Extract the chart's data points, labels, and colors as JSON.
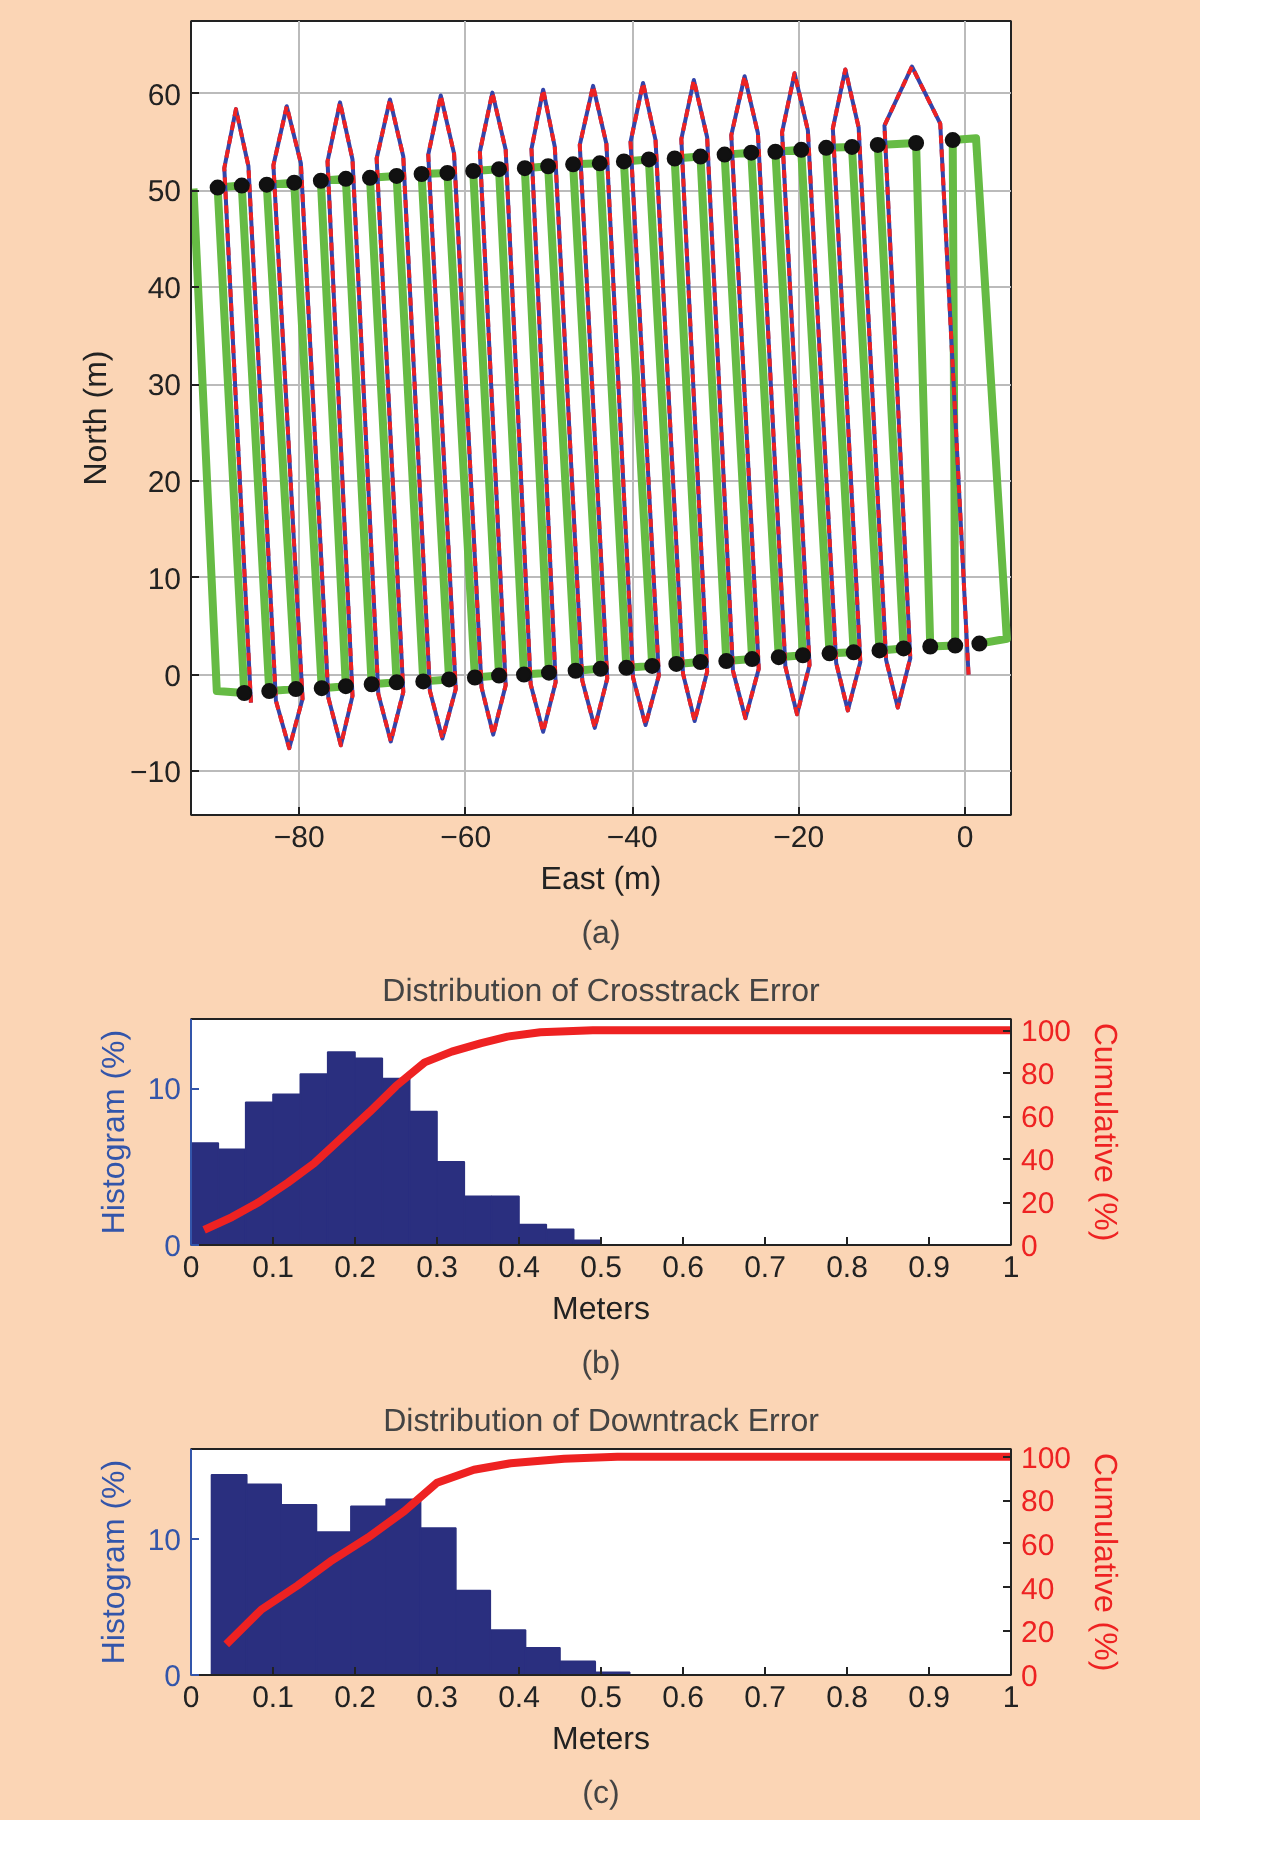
{
  "chart_data": [
    {
      "type": "line",
      "xlabel": "East (m)",
      "ylabel": "North (m)",
      "annotations": [
        "(a)"
      ],
      "xlim": [
        -93,
        5.5
      ],
      "ylim": [
        -14.5,
        67.5
      ],
      "xticks": [
        {
          "value": -80,
          "label": "−80"
        },
        {
          "value": -60,
          "label": "−60"
        },
        {
          "value": -40,
          "label": "−40"
        },
        {
          "value": -20,
          "label": "−20"
        },
        0
      ],
      "yticks": [
        {
          "value": -10,
          "label": "−10"
        },
        0,
        10,
        20,
        30,
        40,
        50,
        60
      ],
      "grid": true,
      "series": [
        {
          "type": "line",
          "color": "#66bb44",
          "line_style": "solid",
          "marker": "none",
          "x": [
            -92.7,
            -89.9,
            -86.6,
            -89.8,
            -86.9,
            -83.6,
            -80.4,
            -83.9,
            -80.6,
            -77.3,
            -74.4,
            -77.4,
            -74.4,
            -71.3,
            -68.3,
            -71.5,
            -68.3,
            -65.1,
            -62.0,
            -65.3,
            -62.2,
            -58.9,
            -56.0,
            -59.1,
            -56.0,
            -53.0,
            -50.0,
            -52.9,
            -50.1,
            -46.8,
            -43.8,
            -47.1,
            -43.9,
            -40.7,
            -37.6,
            -41.0,
            -38.0,
            -34.7,
            -31.8,
            -34.9,
            -31.8,
            -28.7,
            -25.6,
            -28.9,
            -25.7,
            -22.4,
            -19.5,
            -22.8,
            -19.7,
            -16.3,
            -13.4,
            -16.7,
            -13.6,
            -10.3,
            -7.4,
            -10.5,
            -5.9,
            -4.2,
            -1.2,
            -1.5,
            1.3,
            5.0,
            1.7
          ],
          "values": [
            50.2,
            -1.7,
            -1.9,
            50.3,
            50.5,
            -1.7,
            -1.5,
            50.6,
            50.8,
            -1.4,
            -1.2,
            51.0,
            51.2,
            -1.0,
            -0.8,
            51.3,
            51.5,
            -0.7,
            -0.5,
            51.7,
            51.8,
            -0.3,
            -0.1,
            52.0,
            52.2,
            0.0,
            0.2,
            52.3,
            52.5,
            0.4,
            0.6,
            52.7,
            52.8,
            0.7,
            0.9,
            53.0,
            53.2,
            1.1,
            1.3,
            53.3,
            53.5,
            1.4,
            1.6,
            53.7,
            53.9,
            1.8,
            2.0,
            54.0,
            54.2,
            2.2,
            2.3,
            54.4,
            54.5,
            2.5,
            2.7,
            54.7,
            54.9,
            2.9,
            3.0,
            55.2,
            55.4,
            3.7,
            3.2
          ]
        },
        {
          "type": "line",
          "color": "#3344aa",
          "line_style": "solid",
          "marker": "none",
          "x": [
            -85.8,
            -89.0,
            -87.6,
            -86.1,
            -82.8,
            -81.2,
            -79.6,
            -83.1,
            -81.5,
            -79.8,
            -76.5,
            -75.0,
            -73.6,
            -76.6,
            -75.1,
            -73.6,
            -70.5,
            -69.0,
            -67.5,
            -70.7,
            -69.1,
            -67.5,
            -64.3,
            -62.8,
            -61.2,
            -64.5,
            -63.0,
            -61.4,
            -58.1,
            -56.7,
            -55.2,
            -58.3,
            -56.8,
            -55.2,
            -52.2,
            -50.7,
            -49.2,
            -52.1,
            -50.7,
            -49.3,
            -46.0,
            -44.5,
            -43.0,
            -46.3,
            -44.7,
            -43.1,
            -39.9,
            -38.4,
            -36.8,
            -40.2,
            -38.7,
            -37.2,
            -33.9,
            -32.5,
            -31.0,
            -34.1,
            -32.6,
            -31.0,
            -27.9,
            -26.4,
            -24.8,
            -28.1,
            -26.5,
            -24.9,
            -21.6,
            -20.2,
            -18.7,
            -22.0,
            -20.5,
            -18.9,
            -15.5,
            -14.1,
            -12.6,
            -15.9,
            -14.4,
            -12.8,
            -9.5,
            -8.1,
            -6.6,
            -9.7,
            -6.4,
            -3.0,
            0.4
          ],
          "values": [
            -2.9,
            52.3,
            58.4,
            52.5,
            -2.7,
            -7.6,
            -2.5,
            52.6,
            58.7,
            52.8,
            -2.4,
            -7.3,
            -2.2,
            53.0,
            59.1,
            53.2,
            -2.0,
            -6.9,
            -1.8,
            53.3,
            59.4,
            53.5,
            -1.7,
            -6.6,
            -1.5,
            53.7,
            59.8,
            53.8,
            -1.3,
            -6.2,
            -1.1,
            54.0,
            60.1,
            54.2,
            -1.0,
            -5.9,
            -0.8,
            54.3,
            60.4,
            54.5,
            -0.6,
            -5.5,
            -0.4,
            54.7,
            60.8,
            54.8,
            -0.3,
            -5.2,
            -0.1,
            55.0,
            61.1,
            55.2,
            0.1,
            -4.8,
            0.3,
            55.3,
            61.4,
            55.5,
            0.4,
            -4.5,
            0.6,
            55.7,
            61.8,
            55.9,
            0.8,
            -4.1,
            1.0,
            56.0,
            62.1,
            56.2,
            1.2,
            -3.7,
            1.3,
            56.4,
            62.5,
            56.5,
            1.5,
            -3.4,
            1.7,
            56.7,
            62.8,
            56.9,
            0.0
          ]
        },
        {
          "type": "line",
          "color": "#ee2222",
          "line_style": "dashed",
          "marker": "none",
          "x": [
            -85.8,
            -89.0,
            -87.6,
            -86.1,
            -82.8,
            -81.2,
            -79.6,
            -83.1,
            -81.5,
            -79.8,
            -76.5,
            -75.0,
            -73.6,
            -76.6,
            -75.1,
            -73.6,
            -70.5,
            -69.0,
            -67.5,
            -70.7,
            -69.1,
            -67.5,
            -64.3,
            -62.8,
            -61.2,
            -64.5,
            -63.0,
            -61.4,
            -58.1,
            -56.7,
            -55.2,
            -58.3,
            -56.8,
            -55.2,
            -52.2,
            -50.7,
            -49.2,
            -52.1,
            -50.7,
            -49.3,
            -46.0,
            -44.5,
            -43.0,
            -46.3,
            -44.7,
            -43.1,
            -39.9,
            -38.4,
            -36.8,
            -40.2,
            -38.7,
            -37.2,
            -33.9,
            -32.5,
            -31.0,
            -34.1,
            -32.6,
            -31.0,
            -27.9,
            -26.4,
            -24.8,
            -28.1,
            -26.5,
            -24.9,
            -21.6,
            -20.2,
            -18.7,
            -22.0,
            -20.5,
            -18.9,
            -15.5,
            -14.1,
            -12.6,
            -15.9,
            -14.4,
            -12.8,
            -9.5,
            -8.1,
            -6.6,
            -9.7,
            -6.4,
            -3.0,
            0.4
          ],
          "values": [
            -2.9,
            52.3,
            58.4,
            52.5,
            -2.7,
            -7.6,
            -2.5,
            52.6,
            58.7,
            52.8,
            -2.4,
            -7.3,
            -2.2,
            53.0,
            59.1,
            53.2,
            -2.0,
            -6.9,
            -1.8,
            53.3,
            59.4,
            53.5,
            -1.7,
            -6.6,
            -1.5,
            53.7,
            59.8,
            53.8,
            -1.3,
            -6.2,
            -1.1,
            54.0,
            60.1,
            54.2,
            -1.0,
            -5.9,
            -0.8,
            54.3,
            60.4,
            54.5,
            -0.6,
            -5.5,
            -0.4,
            54.7,
            60.8,
            54.8,
            -0.3,
            -5.2,
            -0.1,
            55.0,
            61.1,
            55.2,
            0.1,
            -4.8,
            0.3,
            55.3,
            61.4,
            55.5,
            0.4,
            -4.5,
            0.6,
            55.7,
            61.8,
            55.9,
            0.8,
            -4.1,
            1.0,
            56.0,
            62.1,
            56.2,
            1.2,
            -3.7,
            1.3,
            56.4,
            62.5,
            56.5,
            1.5,
            -3.4,
            1.7,
            56.7,
            62.8,
            56.9,
            0.0
          ]
        },
        {
          "type": "scatter",
          "color": "#111111",
          "marker": "circle",
          "x": [
            -89.8,
            -86.9,
            -83.9,
            -80.6,
            -77.4,
            -74.4,
            -71.5,
            -68.3,
            -65.3,
            -62.2,
            -59.1,
            -56.0,
            -52.9,
            -50.1,
            -47.1,
            -43.9,
            -41.0,
            -38.0,
            -34.9,
            -31.8,
            -28.9,
            -25.7,
            -22.8,
            -19.7,
            -16.7,
            -13.6,
            -10.5,
            -5.9,
            -1.5,
            -86.6,
            -83.6,
            -80.4,
            -77.3,
            -74.4,
            -71.3,
            -68.3,
            -65.1,
            -62.0,
            -58.9,
            -56.0,
            -53.0,
            -50.0,
            -46.8,
            -43.8,
            -40.7,
            -37.6,
            -34.7,
            -31.8,
            -28.7,
            -25.6,
            -22.4,
            -19.5,
            -16.3,
            -13.4,
            -10.3,
            -7.4,
            -4.2,
            -1.2,
            1.7
          ],
          "values": [
            50.3,
            50.5,
            50.6,
            50.8,
            51.0,
            51.2,
            51.3,
            51.5,
            51.7,
            51.8,
            52.0,
            52.2,
            52.3,
            52.5,
            52.7,
            52.8,
            53.0,
            53.2,
            53.3,
            53.5,
            53.7,
            53.9,
            54.0,
            54.2,
            54.4,
            54.5,
            54.7,
            54.9,
            55.2,
            -1.9,
            -1.7,
            -1.5,
            -1.4,
            -1.2,
            -1.0,
            -0.8,
            -0.7,
            -0.5,
            -0.3,
            -0.1,
            0.0,
            0.2,
            0.4,
            0.6,
            0.7,
            0.9,
            1.1,
            1.3,
            1.4,
            1.6,
            1.8,
            2.0,
            2.2,
            2.3,
            2.5,
            2.7,
            2.9,
            3.0,
            3.2
          ]
        }
      ]
    },
    {
      "type": "histogram",
      "title": "Distribution of Crosstrack Error",
      "xlabel": "Meters",
      "ylabel": "Histogram (%)",
      "y2label": "Cumulative (%)",
      "annotations": [
        "(b)"
      ],
      "color": "#2a2f7f",
      "bins": [
        0,
        0.0333,
        0.0667,
        0.1,
        0.1333,
        0.1667,
        0.2,
        0.2333,
        0.2667,
        0.3,
        0.3333,
        0.3667,
        0.4,
        0.4333,
        0.4667,
        0.5,
        0.5333,
        0.5667,
        0.6,
        0.6333,
        0.6667,
        0.7,
        0.7333,
        0.7667,
        0.8,
        0.8333,
        0.8667,
        0.9,
        0.9333,
        0.9667,
        1
      ],
      "values": [
        6.5,
        6.1,
        9.1,
        9.6,
        10.9,
        12.3,
        11.9,
        10.6,
        8.5,
        5.3,
        3.1,
        3.1,
        1.3,
        1.0,
        0.3,
        null,
        null,
        null,
        null,
        null,
        0,
        0,
        0,
        0,
        0,
        0,
        0,
        0,
        0,
        0
      ],
      "xlim": [
        0,
        1
      ],
      "xticks": [
        0,
        0.1,
        0.2,
        0.3,
        0.4,
        0.5,
        0.6,
        0.7,
        0.8,
        0.9,
        1
      ],
      "ylim": [
        0,
        14.4
      ],
      "yticks": [
        0,
        10
      ],
      "y2lim": [
        0,
        105.2
      ],
      "y2ticks": [
        0,
        20,
        40,
        60,
        80,
        100
      ],
      "grid": false,
      "series": [
        {
          "type": "line",
          "axis": "y2",
          "color": "#ee2222",
          "x": [
            0.016,
            0.05,
            0.083,
            0.118,
            0.15,
            0.184,
            0.218,
            0.25,
            0.285,
            0.318,
            0.354,
            0.386,
            0.426,
            0.49,
            1.0
          ],
          "values": [
            7,
            13,
            20,
            29,
            38,
            50,
            62,
            74,
            85,
            90,
            94,
            97,
            99,
            100,
            100
          ]
        }
      ]
    },
    {
      "type": "histogram",
      "title": "Distribution of Downtrack Error",
      "xlabel": "Meters",
      "ylabel": "Histogram (%)",
      "y2label": "Cumulative (%)",
      "annotations": [
        "(c)"
      ],
      "color": "#2a2f7f",
      "bins": [
        0.025,
        0.068,
        0.11,
        0.153,
        0.195,
        0.238,
        0.28,
        0.323,
        0.365,
        0.408,
        0.45,
        0.493,
        0.535,
        0.578,
        0.62,
        0.663,
        0.705,
        0.748,
        0.79,
        0.833,
        0.875,
        0.918,
        0.96,
        1.0
      ],
      "values": [
        14.7,
        14.0,
        12.5,
        10.5,
        12.4,
        12.9,
        10.8,
        6.2,
        3.3,
        2.0,
        1.0,
        0.2,
        0,
        0,
        0,
        0,
        0,
        0,
        0,
        0,
        0,
        0,
        0
      ],
      "xlim": [
        0,
        1
      ],
      "xticks": [
        0,
        0.1,
        0.2,
        0.3,
        0.4,
        0.5,
        0.6,
        0.7,
        0.8,
        0.9,
        1
      ],
      "ylim": [
        0,
        16.6
      ],
      "yticks": [
        0,
        10
      ],
      "y2lim": [
        0,
        103.5
      ],
      "y2ticks": [
        0,
        20,
        40,
        60,
        80,
        100
      ],
      "grid": false,
      "series": [
        {
          "type": "line",
          "axis": "y2",
          "color": "#ee2222",
          "x": [
            0.043,
            0.086,
            0.13,
            0.17,
            0.216,
            0.26,
            0.3,
            0.345,
            0.39,
            0.455,
            0.52,
            1.0
          ],
          "values": [
            14,
            30,
            41,
            52,
            63,
            75,
            88,
            94,
            97,
            99,
            100,
            100
          ]
        }
      ]
    }
  ]
}
